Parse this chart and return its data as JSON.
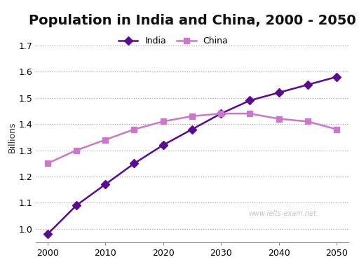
{
  "title": "Population in India and China, 2000 - 2050",
  "ylabel": "Billions",
  "india_x": [
    2000,
    2005,
    2010,
    2015,
    2020,
    2025,
    2030,
    2035,
    2040,
    2045,
    2050
  ],
  "india_y": [
    0.98,
    1.09,
    1.17,
    1.25,
    1.32,
    1.38,
    1.44,
    1.49,
    1.52,
    1.55,
    1.58
  ],
  "china_x": [
    2000,
    2005,
    2010,
    2015,
    2020,
    2025,
    2030,
    2035,
    2040,
    2045,
    2050
  ],
  "china_y": [
    1.25,
    1.3,
    1.34,
    1.38,
    1.41,
    1.43,
    1.44,
    1.44,
    1.42,
    1.41,
    1.38
  ],
  "india_color": "#5b0a91",
  "china_color": "#cc77cc",
  "ylim": [
    0.95,
    1.75
  ],
  "yticks": [
    1.0,
    1.1,
    1.2,
    1.3,
    1.4,
    1.5,
    1.6,
    1.7
  ],
  "xticks": [
    2000,
    2010,
    2020,
    2030,
    2040,
    2050
  ],
  "xlim": [
    1998,
    2052
  ],
  "grid_color": "#aaaaaa",
  "bg_color": "#ffffff",
  "watermark": "www.ielts-exam.net",
  "title_fontsize": 14,
  "label_fontsize": 9,
  "tick_fontsize": 9,
  "legend_fontsize": 9,
  "line_width": 1.8,
  "marker_size": 6
}
